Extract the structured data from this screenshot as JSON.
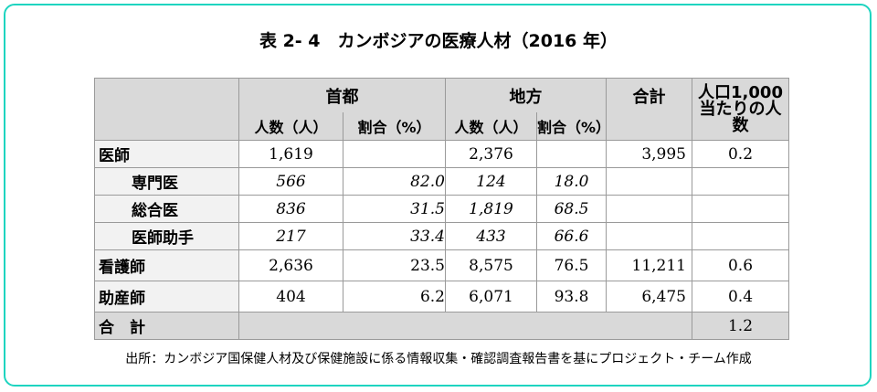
{
  "title": "表 2- 4　カンボジアの医療人材（2016 年）",
  "header": {
    "capital": "首都",
    "province": "地方",
    "total": "合計",
    "per_1000": "人口1,000",
    "per_1000_2": "当たりの人数",
    "count": "人数（人）",
    "ratio": "割合（%）"
  },
  "rows": [
    {
      "label": "医師",
      "c_count": "1,619",
      "c_ratio": "",
      "p_count": "2,376",
      "p_ratio": "",
      "total": "3,995",
      "per": "0.2"
    },
    {
      "label": "専門医",
      "c_count": "566",
      "c_ratio": "82.0",
      "p_count": "124",
      "p_ratio": "18.0",
      "total": "",
      "per": ""
    },
    {
      "label": "総合医",
      "c_count": "836",
      "c_ratio": "31.5",
      "p_count": "1,819",
      "p_ratio": "68.5",
      "total": "",
      "per": ""
    },
    {
      "label": "医師助手",
      "c_count": "217",
      "c_ratio": "33.4",
      "p_count": "433",
      "p_ratio": "66.6",
      "total": "",
      "per": ""
    },
    {
      "label": "看護師",
      "c_count": "2,636",
      "c_ratio": "23.5",
      "p_count": "8,575",
      "p_ratio": "76.5",
      "total": "11,211",
      "per": "0.6"
    },
    {
      "label": "助産師",
      "c_count": "404",
      "c_ratio": "6.2",
      "p_count": "6,071",
      "p_ratio": "93.8",
      "total": "6,475",
      "per": "0.4"
    }
  ],
  "total_row": {
    "label": "合　計",
    "per": "1.2"
  },
  "source": "出所：カンボジア国保健人材及び保健施設に係る情報収集・確認調査報告書を基にプロジェクト・チーム作成",
  "colors": {
    "frame": "#1ed4c0",
    "header_bg": "#d9d9d9",
    "label_bg": "#f2f2f2"
  }
}
